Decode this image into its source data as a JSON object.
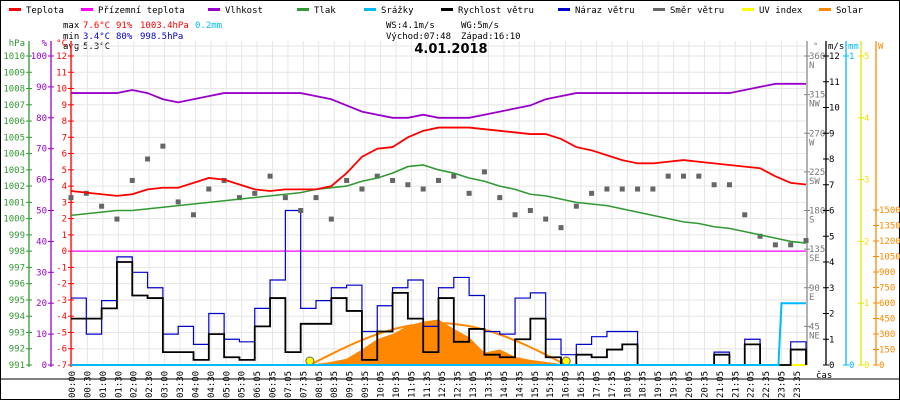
{
  "legend": [
    {
      "label": "Teplota",
      "color": "#ff0000"
    },
    {
      "label": "Přízemní teplota",
      "color": "#ff00ff"
    },
    {
      "label": "Vlhkost",
      "color": "#9900cc"
    },
    {
      "label": "Tlak",
      "color": "#339933"
    },
    {
      "label": "Srážky",
      "color": "#00bbff"
    },
    {
      "label": "Rychlost větru",
      "color": "#000000"
    },
    {
      "label": "Náraz větru",
      "color": "#0000cc"
    },
    {
      "label": "Směr větru",
      "color": "#666666"
    },
    {
      "label": "UV index",
      "color": "#ffff00"
    },
    {
      "label": "Solar",
      "color": "#ff8800"
    }
  ],
  "stats": {
    "max_label": "max",
    "max_temp": "7.6°C",
    "max_hum": "91%",
    "max_press": "1003.4hPa",
    "max_rain": "0.2mm",
    "min_label": "min",
    "min_temp": "3.4°C",
    "min_hum": "80%",
    "min_press": "998.5hPa",
    "avg_label": "avg",
    "avg_temp": "5.3°C",
    "ws": "WS:4.1m/s",
    "wg": "WG:5m/s",
    "sunrise": "Východ:07:48",
    "sunset": "Západ:16:10"
  },
  "chart_data": {
    "type": "line",
    "title": "4.01.2018",
    "xlabel": "čas",
    "x_ticks": [
      "00:00",
      "00:30",
      "01:00",
      "01:30",
      "02:00",
      "02:30",
      "03:00",
      "03:30",
      "04:00",
      "04:30",
      "05:00",
      "05:30",
      "06:05",
      "06:35",
      "07:05",
      "07:35",
      "08:05",
      "08:35",
      "09:05",
      "09:35",
      "10:05",
      "10:35",
      "11:05",
      "11:35",
      "12:05",
      "12:35",
      "13:05",
      "13:35",
      "14:05",
      "14:35",
      "15:05",
      "15:35",
      "16:05",
      "16:35",
      "17:05",
      "17:35",
      "18:05",
      "18:35",
      "19:05",
      "19:35",
      "20:05",
      "20:35",
      "21:05",
      "21:35",
      "22:05",
      "22:35",
      "23:05",
      "23:35"
    ],
    "axes": {
      "hpa": {
        "unit": "hPa",
        "range": [
          991,
          1010
        ],
        "ticks": [
          991,
          992,
          993,
          994,
          995,
          996,
          997,
          998,
          999,
          1000,
          1001,
          1002,
          1003,
          1004,
          1005,
          1006,
          1007,
          1008,
          1009,
          1010
        ]
      },
      "hum": {
        "unit": "%",
        "range": [
          0,
          100
        ],
        "ticks": [
          0,
          10,
          20,
          30,
          40,
          50,
          60,
          70,
          80,
          90,
          100
        ]
      },
      "temp": {
        "unit": "°C",
        "range": [
          -7,
          12
        ],
        "ticks": [
          -7,
          -6,
          -5,
          -4,
          -3,
          -2,
          -1,
          0,
          1,
          2,
          3,
          4,
          5,
          6,
          7,
          8,
          9,
          10,
          11,
          12
        ]
      },
      "dir": {
        "unit": "°",
        "range": [
          0,
          360
        ],
        "ticks": [
          {
            "v": 45,
            "l": "45",
            "c": "NE"
          },
          {
            "v": 90,
            "l": "90",
            "c": "E"
          },
          {
            "v": 135,
            "l": "135",
            "c": "SE"
          },
          {
            "v": 180,
            "l": "180",
            "c": "S"
          },
          {
            "v": 225,
            "l": "225",
            "c": "SW"
          },
          {
            "v": 270,
            "l": "270",
            "c": "W"
          },
          {
            "v": 315,
            "l": "315",
            "c": "NW"
          },
          {
            "v": 360,
            "l": "360",
            "c": "N"
          }
        ]
      },
      "wind": {
        "unit": "m/s",
        "range": [
          0,
          12
        ],
        "ticks": [
          0,
          1,
          2,
          3,
          4,
          5,
          6,
          7,
          8,
          9,
          10,
          11,
          12
        ]
      },
      "rain": {
        "unit": "mm",
        "range": [
          0,
          1
        ],
        "ticks": [
          0,
          1
        ]
      },
      "uv": {
        "unit": "",
        "range": [
          0,
          5
        ],
        "ticks": [
          0,
          1,
          2,
          3,
          4,
          5
        ]
      },
      "solar": {
        "unit": "W",
        "range": [
          0,
          3000
        ],
        "ticks": [
          0,
          150,
          300,
          450,
          600,
          750,
          900,
          1050,
          1200,
          1350,
          1500
        ]
      }
    },
    "step_hours": 0.5,
    "series": [
      {
        "name": "Teplota",
        "axis": "temp",
        "values": [
          3.7,
          3.6,
          3.5,
          3.4,
          3.5,
          3.8,
          3.9,
          3.9,
          4.2,
          4.5,
          4.4,
          4.1,
          3.8,
          3.7,
          3.8,
          3.8,
          3.8,
          4.0,
          4.8,
          5.8,
          6.3,
          6.4,
          7.0,
          7.4,
          7.6,
          7.6,
          7.6,
          7.5,
          7.4,
          7.3,
          7.2,
          7.2,
          6.9,
          6.4,
          6.2,
          5.9,
          5.6,
          5.4,
          5.4,
          5.5,
          5.6,
          5.5,
          5.4,
          5.3,
          5.2,
          5.1,
          4.6,
          4.2,
          4.1
        ]
      },
      {
        "name": "Přízemní teplota",
        "axis": "temp",
        "values": [
          0,
          0
        ]
      },
      {
        "name": "Vlhkost",
        "axis": "hum",
        "values": [
          88,
          88,
          88,
          88,
          89,
          88,
          86,
          85,
          86,
          87,
          88,
          88,
          88,
          88,
          88,
          88,
          87,
          86,
          84,
          82,
          81,
          80,
          80,
          81,
          80,
          80,
          80,
          81,
          82,
          83,
          84,
          86,
          87,
          88,
          88,
          88,
          88,
          88,
          88,
          88,
          88,
          88,
          88,
          88,
          89,
          90,
          91,
          91,
          91
        ]
      },
      {
        "name": "Tlak",
        "axis": "hpa",
        "values": [
          1000.2,
          1000.3,
          1000.4,
          1000.5,
          1000.5,
          1000.6,
          1000.7,
          1000.8,
          1000.9,
          1001.0,
          1001.1,
          1001.2,
          1001.3,
          1001.4,
          1001.5,
          1001.6,
          1001.8,
          1001.9,
          1002.0,
          1002.3,
          1002.5,
          1002.8,
          1003.2,
          1003.3,
          1003.0,
          1002.8,
          1002.5,
          1002.3,
          1002.0,
          1001.8,
          1001.5,
          1001.4,
          1001.2,
          1001.0,
          1000.9,
          1000.8,
          1000.6,
          1000.4,
          1000.2,
          1000.0,
          999.8,
          999.7,
          999.5,
          999.4,
          999.2,
          999.0,
          998.8,
          998.6,
          998.5
        ]
      },
      {
        "name": "Rychlost větru",
        "axis": "wind",
        "values": [
          1.8,
          1.8,
          2.2,
          4.0,
          2.7,
          2.6,
          0.5,
          0.5,
          0.2,
          1.2,
          0.3,
          0.2,
          1.5,
          2.6,
          0.5,
          1.6,
          1.6,
          2.6,
          2.1,
          0.2,
          1.3,
          2.8,
          1.8,
          0.5,
          2.6,
          0.9,
          1.4,
          0.4,
          0.3,
          1.0,
          1.8,
          0.3,
          0,
          0.4,
          0.3,
          0.6,
          0.8,
          0,
          0,
          0,
          0,
          0,
          0.4,
          0,
          0.8,
          0,
          0,
          0.6,
          0
        ]
      },
      {
        "name": "Náraz větru",
        "axis": "wind",
        "values": [
          2.6,
          1.2,
          2.5,
          4.2,
          3.6,
          3.0,
          1.2,
          1.5,
          0.8,
          2.0,
          1.0,
          0.9,
          2.2,
          3.3,
          6.0,
          2.2,
          2.5,
          3.0,
          3.1,
          1.3,
          2.3,
          3.0,
          3.3,
          1.5,
          3.0,
          3.4,
          2.7,
          1.3,
          1.2,
          2.6,
          2.8,
          1.0,
          0.4,
          0.8,
          1.1,
          1.3,
          1.3,
          0,
          0,
          0,
          0,
          0,
          0.5,
          0,
          1.0,
          0,
          0,
          0.9,
          0
        ]
      },
      {
        "name": "Směr větru",
        "axis": "dir",
        "values": [
          195,
          200,
          185,
          170,
          215,
          240,
          255,
          190,
          175,
          205,
          215,
          195,
          200,
          220,
          195,
          180,
          195,
          170,
          215,
          205,
          220,
          215,
          210,
          205,
          215,
          220,
          200,
          225,
          195,
          175,
          180,
          170,
          160,
          185,
          200,
          205,
          205,
          205,
          205,
          220,
          220,
          220,
          210,
          210,
          175,
          150,
          140,
          140,
          145
        ]
      },
      {
        "name": "Srážky",
        "axis": "rain",
        "points": [
          [
            0,
            0
          ],
          [
            23.1,
            0
          ],
          [
            23.2,
            0.2
          ],
          [
            24,
            0.2
          ]
        ]
      },
      {
        "name": "UV index",
        "axis": "uv",
        "points": [
          [
            0,
            0
          ],
          [
            24,
            0
          ]
        ]
      },
      {
        "name": "Solar",
        "axis": "solar",
        "points": [
          [
            7.8,
            0
          ],
          [
            8.0,
            10
          ],
          [
            8.5,
            30
          ],
          [
            9.0,
            60
          ],
          [
            9.5,
            150
          ],
          [
            10.0,
            250
          ],
          [
            10.5,
            300
          ],
          [
            11.0,
            380
          ],
          [
            11.5,
            420
          ],
          [
            12.0,
            440
          ],
          [
            12.5,
            350
          ],
          [
            13.0,
            270
          ],
          [
            13.5,
            120
          ],
          [
            14.0,
            150
          ],
          [
            14.5,
            80
          ],
          [
            15.0,
            50
          ],
          [
            15.5,
            30
          ],
          [
            16.0,
            10
          ],
          [
            16.17,
            0
          ]
        ]
      },
      {
        "name": "Solar teoretický",
        "axis": "solar",
        "sunrise_h": 7.8,
        "sunset_h": 16.17,
        "peak": 405
      }
    ]
  }
}
